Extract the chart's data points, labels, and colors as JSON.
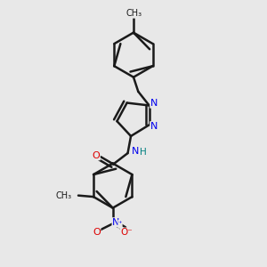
{
  "background_color": "#e8e8e8",
  "bond_color": "#1a1a1a",
  "bond_width": 1.8,
  "nitrogen_color": "#0000ee",
  "oxygen_color": "#dd0000",
  "hydrogen_color": "#008080",
  "carbon_color": "#1a1a1a",
  "figsize": [
    3.0,
    3.0
  ],
  "dpi": 100,
  "xlim": [
    0.1,
    0.9
  ],
  "ylim": [
    0.0,
    1.0
  ]
}
